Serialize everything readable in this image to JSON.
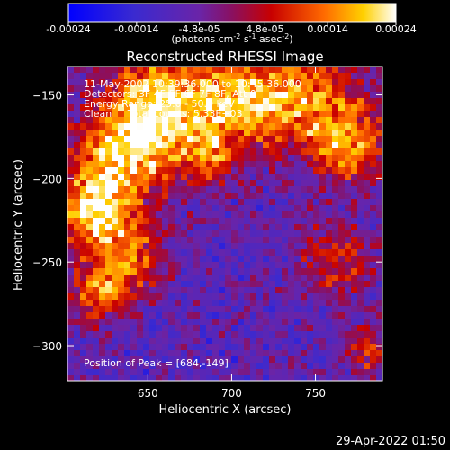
{
  "chart_data": {
    "type": "heatmap",
    "title": "Reconstructed RHESSI Image",
    "xlabel": "Heliocentric X (arcsec)",
    "ylabel": "Heliocentric Y (arcsec)",
    "xlim": [
      602,
      790
    ],
    "ylim": [
      -321,
      -133
    ],
    "xticks": [
      650,
      700,
      750
    ],
    "yticks": [
      -150,
      -200,
      -250,
      -300
    ],
    "colorbar": {
      "range": [
        -0.00024,
        0.00024
      ],
      "tick_values": [
        -0.00024,
        -0.00014,
        -4.8e-05,
        4.8e-05,
        0.00014,
        0.00024
      ],
      "tick_labels": [
        "-0.00024",
        "-0.00014",
        "-4.8e-05",
        "4.8e-05",
        "0.00014",
        "0.00024"
      ],
      "unit_text": "(photons cm",
      "unit_sup1": "-2",
      "unit_mid1": " s",
      "unit_sup2": "-1",
      "unit_mid2": " asec",
      "unit_sup3": "-2",
      "unit_end": ")"
    },
    "annotations": {
      "time_range": "11-May-2002 10:39:36.000 to 10:45:36.000",
      "detectors": "Detectors: 3F 4F 5F 6F 7F 8F, Att 0",
      "energy": "Energy Range: 25.0 - 50.0 keV",
      "clean": "Clean     Total counts: 5.33E+03",
      "peak": "Position of Peak = [684,-149]"
    },
    "peak_position": [
      684,
      -149
    ],
    "grid": false
  },
  "footer": {
    "timestamp": "29-Apr-2022 01:50"
  }
}
